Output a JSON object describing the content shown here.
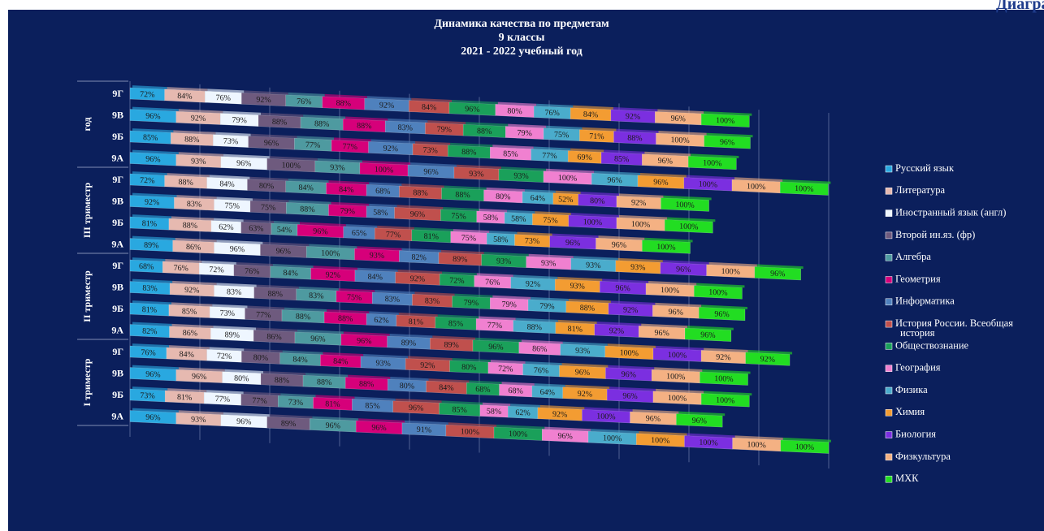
{
  "corner_text": "Диаграмма",
  "chart_data": {
    "type": "stacked-bar-horizontal-3d",
    "title": [
      "Динамика качества по предметам",
      "9 классы",
      "2021 - 2022 учебный год"
    ],
    "category_groups": [
      "год",
      "III триместр",
      "II триместр",
      "I триместр"
    ],
    "categories": [
      "9Г",
      "9В",
      "9Б",
      "9А",
      "9Г",
      "9В",
      "9Б",
      "9А",
      "9Г",
      "9В",
      "9Б",
      "9А",
      "9Г",
      "9В",
      "9Б",
      "9А"
    ],
    "legend": "right",
    "series": [
      {
        "name": "Русский язык",
        "color": "#29a8e0",
        "values": [
          72,
          96,
          85,
          96,
          72,
          92,
          81,
          89,
          68,
          83,
          81,
          82,
          76,
          96,
          73,
          96
        ],
        "value_labels": [
          "72%",
          "96%",
          "85%",
          "96%",
          "72%",
          "92%",
          "81%",
          "89%",
          "68%",
          "83%",
          "81%",
          "82%",
          "76%",
          "96%",
          "73%",
          "96%"
        ]
      },
      {
        "name": "Литература",
        "color": "#e6b9b0",
        "values": [
          84,
          92,
          88,
          93,
          88,
          83,
          88,
          86,
          76,
          92,
          85,
          86,
          84,
          96,
          81,
          93
        ],
        "value_labels": [
          "84%",
          "92%",
          "88%",
          "93%",
          "88%",
          "83%",
          "88%",
          "86%",
          "76%",
          "92%",
          "85%",
          "86%",
          "84%",
          "96%",
          "81%",
          "93%"
        ]
      },
      {
        "name": "Иностранный язык (англ)",
        "color": "#eef6ff",
        "values": [
          76,
          79,
          73,
          96,
          84,
          75,
          62,
          96,
          72,
          83,
          73,
          89,
          72,
          80,
          77,
          96
        ],
        "value_labels": [
          "76%",
          "79%",
          "73%",
          "96%",
          "84%",
          "75%",
          "62%",
          "96%",
          "72%",
          "83%",
          "73%",
          "89%",
          "72%",
          "80%",
          "77%",
          "96%"
        ]
      },
      {
        "name": "Второй ин.яз. (фр)",
        "color": "#6e5a7e",
        "values": [
          92,
          88,
          96,
          100,
          80,
          75,
          63,
          96,
          76,
          88,
          77,
          86,
          80,
          88,
          77,
          89
        ],
        "value_labels": [
          "92%",
          "88%",
          "96%",
          "100%",
          "80%",
          "75%",
          "63%",
          "96%",
          "76%",
          "88%",
          "77%",
          "86%",
          "80%",
          "88%",
          "77%",
          "89%"
        ]
      },
      {
        "name": "Алгебра",
        "color": "#4e9aa0",
        "values": [
          76,
          88,
          77,
          93,
          84,
          88,
          54,
          100,
          84,
          83,
          88,
          96,
          84,
          88,
          73,
          96
        ],
        "value_labels": [
          "76%",
          "88%",
          "77%",
          "93%",
          "84%",
          "88%",
          "54%",
          "100%",
          "84%",
          "83%",
          "88%",
          "96%",
          "84%",
          "88%",
          "73%",
          "96%"
        ]
      },
      {
        "name": "Геометрия",
        "color": "#d6007a",
        "values": [
          88,
          88,
          77,
          100,
          84,
          79,
          96,
          93,
          92,
          75,
          88,
          96,
          84,
          88,
          81,
          96
        ],
        "value_labels": [
          "88%",
          "88%",
          "77%",
          "100%",
          "84%",
          "79%",
          "96%",
          "93%",
          "92%",
          "75%",
          "88%",
          "96%",
          "84%",
          "88%",
          "81%",
          "96%"
        ]
      },
      {
        "name": "Информатика",
        "color": "#4f81bd",
        "values": [
          92,
          83,
          92,
          96,
          68,
          58,
          65,
          82,
          84,
          83,
          62,
          89,
          93,
          80,
          85,
          91
        ],
        "value_labels": [
          "92%",
          "83%",
          "92%",
          "96%",
          "68%",
          "58%",
          "65%",
          "82%",
          "84%",
          "83%",
          "62%",
          "89%",
          "93%",
          "80%",
          "85%",
          "91%"
        ]
      },
      {
        "name": "История России. Всеобщая история",
        "color": "#c0504d",
        "values": [
          84,
          79,
          73,
          93,
          88,
          96,
          77,
          89,
          92,
          83,
          81,
          89,
          92,
          84,
          96,
          100
        ],
        "value_labels": [
          "84%",
          "79%",
          "73%",
          "93%",
          "88%",
          "96%",
          "77%",
          "89%",
          "92%",
          "83%",
          "81%",
          "89%",
          "92%",
          "84%",
          "96%",
          "100%"
        ]
      },
      {
        "name": "Обществознание",
        "color": "#1aa05a",
        "values": [
          96,
          88,
          88,
          93,
          88,
          75,
          81,
          93,
          72,
          79,
          85,
          96,
          80,
          68,
          85,
          100
        ],
        "value_labels": [
          "96%",
          "88%",
          "88%",
          "93%",
          "88%",
          "75%",
          "81%",
          "93%",
          "72%",
          "79%",
          "85%",
          "96%",
          "80%",
          "68%",
          "85%",
          "100%"
        ]
      },
      {
        "name": "География",
        "color": "#f080d0",
        "values": [
          80,
          79,
          85,
          100,
          80,
          58,
          75,
          93,
          76,
          79,
          77,
          86,
          72,
          68,
          58,
          96
        ],
        "value_labels": [
          "80%",
          "79%",
          "85%",
          "100%",
          "80%",
          "58%",
          "75%",
          "93%",
          "76%",
          "79%",
          "77%",
          "86%",
          "72%",
          "68%",
          "58%",
          "96%"
        ]
      },
      {
        "name": "Физика",
        "color": "#4aaccc",
        "values": [
          76,
          75,
          77,
          96,
          64,
          58,
          58,
          93,
          92,
          79,
          88,
          93,
          76,
          64,
          62,
          100
        ],
        "value_labels": [
          "76%",
          "75%",
          "77%",
          "96%",
          "64%",
          "58%",
          "58%",
          "93%",
          "92%",
          "79%",
          "88%",
          "93%",
          "76%",
          "64%",
          "62%",
          "100%"
        ]
      },
      {
        "name": "Химия",
        "color": "#f39c32",
        "values": [
          84,
          71,
          69,
          96,
          52,
          75,
          73,
          93,
          93,
          88,
          81,
          100,
          96,
          92,
          92,
          100
        ],
        "value_labels": [
          "84%",
          "71%",
          "69%",
          "96%",
          "52%",
          "75%",
          "73%",
          "93%",
          "93%",
          "88%",
          "81%",
          "100%",
          "96%",
          "92%",
          "92%",
          "100%"
        ]
      },
      {
        "name": "Биология",
        "color": "#7b2fe0",
        "values": [
          92,
          88,
          85,
          100,
          80,
          100,
          96,
          96,
          96,
          92,
          92,
          100,
          96,
          96,
          100,
          100
        ],
        "value_labels": [
          "92%",
          "88%",
          "85%",
          "100%",
          "80%",
          "100%",
          "96%",
          "96%",
          "96%",
          "92%",
          "92%",
          "100%",
          "96%",
          "96%",
          "100%",
          "100%"
        ]
      },
      {
        "name": "Физкультура",
        "color": "#f4b183",
        "values": [
          96,
          100,
          96,
          100,
          92,
          100,
          96,
          100,
          100,
          96,
          96,
          92,
          100,
          100,
          96,
          100
        ],
        "value_labels": [
          "96%",
          "100%",
          "96%",
          "100%",
          "92%",
          "100%",
          "96%",
          "100%",
          "100%",
          "96%",
          "96%",
          "92%",
          "100%",
          "100%",
          "96%",
          "100%"
        ]
      },
      {
        "name": "МХК",
        "color": "#22dd22",
        "values": [
          100,
          96,
          100,
          100,
          100,
          100,
          100,
          96,
          100,
          96,
          96,
          92,
          100,
          100,
          96,
          100
        ],
        "value_labels": [
          "100%",
          "96%",
          "100%",
          "100%",
          "100%",
          "100%",
          "100%",
          "96%",
          "100%",
          "96%",
          "96%",
          "92%",
          "100%",
          "100%",
          "96%",
          "100%"
        ]
      }
    ]
  }
}
